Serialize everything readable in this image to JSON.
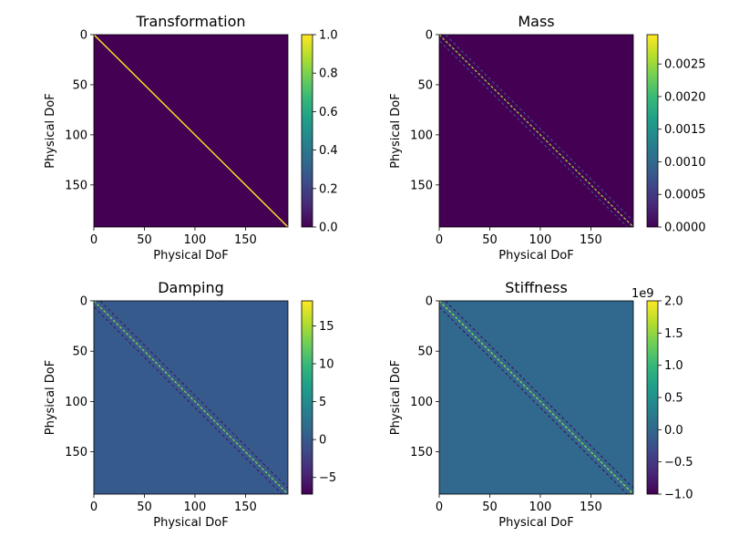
{
  "chart_data": [
    {
      "type": "heatmap",
      "title": "Transformation",
      "xlabel": "Physical DoF",
      "ylabel": "Physical DoF",
      "matrix_size": 192,
      "x_ticks": [
        0,
        50,
        100,
        150
      ],
      "y_ticks": [
        0,
        50,
        100,
        150
      ],
      "colorbar": {
        "min": 0.0,
        "max": 1.0,
        "ticks": [
          "0.0",
          "0.2",
          "0.4",
          "0.6",
          "0.8",
          "1.0"
        ],
        "tick_values": [
          0.0,
          0.2,
          0.4,
          0.6,
          0.8,
          1.0
        ],
        "offset_label": ""
      },
      "background_value": 0.0,
      "pattern": {
        "main_diagonal_value": 1.0,
        "band_offsets": [],
        "band_values": []
      }
    },
    {
      "type": "heatmap",
      "title": "Mass",
      "xlabel": "Physical DoF",
      "ylabel": "Physical DoF",
      "matrix_size": 192,
      "x_ticks": [
        0,
        50,
        100,
        150
      ],
      "y_ticks": [
        0,
        50,
        100,
        150
      ],
      "colorbar": {
        "min": 0.0,
        "max": 0.00295,
        "ticks": [
          "0.0000",
          "0.0005",
          "0.0010",
          "0.0015",
          "0.0020",
          "0.0025"
        ],
        "tick_values": [
          0.0,
          0.0005,
          0.001,
          0.0015,
          0.002,
          0.0025
        ],
        "offset_label": ""
      },
      "background_value": 0.0,
      "pattern": {
        "main_diagonal_value": 0.0025,
        "band_offsets": [
          6,
          -6
        ],
        "band_values": [
          0.0008,
          0.0008
        ]
      }
    },
    {
      "type": "heatmap",
      "title": "Damping",
      "xlabel": "Physical DoF",
      "ylabel": "Physical DoF",
      "matrix_size": 192,
      "x_ticks": [
        0,
        50,
        100,
        150
      ],
      "y_ticks": [
        0,
        50,
        100,
        150
      ],
      "colorbar": {
        "min": -7.2,
        "max": 18.3,
        "ticks": [
          "−5",
          "0",
          "5",
          "10",
          "15"
        ],
        "tick_values": [
          -5,
          0,
          5,
          10,
          15
        ],
        "offset_label": ""
      },
      "background_value": 0.0,
      "pattern": {
        "main_diagonal_value": 14.0,
        "band_offsets": [
          6,
          -6
        ],
        "band_values": [
          -6.0,
          -6.0
        ]
      }
    },
    {
      "type": "heatmap",
      "title": "Stiffness",
      "xlabel": "Physical DoF",
      "ylabel": "Physical DoF",
      "matrix_size": 192,
      "x_ticks": [
        0,
        50,
        100,
        150
      ],
      "y_ticks": [
        0,
        50,
        100,
        150
      ],
      "colorbar": {
        "min": -1.0,
        "max": 2.0,
        "ticks": [
          "−1.0",
          "−0.5",
          "0.0",
          "0.5",
          "1.0",
          "1.5",
          "2.0"
        ],
        "tick_values": [
          -1.0,
          -0.5,
          0.0,
          0.5,
          1.0,
          1.5,
          2.0
        ],
        "offset_label": "1e9"
      },
      "background_value": 0.0,
      "pattern": {
        "main_diagonal_value": 1.6,
        "band_offsets": [
          6,
          -6
        ],
        "band_values": [
          -0.9,
          -0.9
        ]
      }
    }
  ]
}
